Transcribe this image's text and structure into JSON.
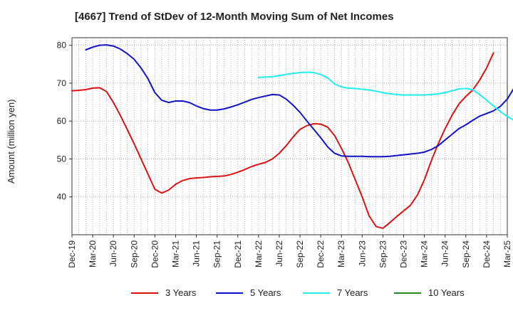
{
  "chart_data": {
    "type": "line",
    "title": "[4667]  Trend of StDev of 12-Month Moving Sum of Net Incomes",
    "xlabel": "",
    "ylabel": "Amount (million yen)",
    "ylim": [
      30,
      82
    ],
    "yticks": [
      40,
      50,
      60,
      70,
      80
    ],
    "x_tick_labels": [
      "Dec-19",
      "Mar-20",
      "Jun-20",
      "Sep-20",
      "Dec-20",
      "Mar-21",
      "Jun-21",
      "Sep-21",
      "Dec-21",
      "Mar-22",
      "Jun-22",
      "Sep-22",
      "Dec-22",
      "Mar-23",
      "Jun-23",
      "Sep-23",
      "Dec-23",
      "Mar-24",
      "Jun-24",
      "Sep-24",
      "Dec-24",
      "Mar-25"
    ],
    "grid": true,
    "legend_position": "bottom",
    "series": [
      {
        "name": "3 Years",
        "color": "#dd1111",
        "start_month": 0,
        "values": [
          68.0,
          68.1,
          68.3,
          68.7,
          68.8,
          67.8,
          64.9,
          61.5,
          57.8,
          54.0,
          50.0,
          46.0,
          42.0,
          41.0,
          41.8,
          43.3,
          44.3,
          44.8,
          45.0,
          45.1,
          45.3,
          45.4,
          45.5,
          45.9,
          46.5,
          47.2,
          48.0,
          48.6,
          49.1,
          50.0,
          51.5,
          53.5,
          55.8,
          57.8,
          58.8,
          59.3,
          59.2,
          58.4,
          56.2,
          52.8,
          49.0,
          44.5,
          40.0,
          35.0,
          32.2,
          31.7,
          33.2,
          34.8,
          36.3,
          37.8,
          40.5,
          44.5,
          49.5,
          54.0,
          58.0,
          61.5,
          64.5,
          66.5,
          68.2,
          70.8,
          74.0,
          78.0
        ]
      },
      {
        "name": "5 Years",
        "color": "#1111cc",
        "start_month": 2,
        "values": [
          78.8,
          79.5,
          80.0,
          80.1,
          79.8,
          79.0,
          77.8,
          76.3,
          74.0,
          71.2,
          67.5,
          65.5,
          64.9,
          65.3,
          65.3,
          64.9,
          64.0,
          63.3,
          62.9,
          62.9,
          63.2,
          63.7,
          64.3,
          65.0,
          65.7,
          66.2,
          66.6,
          67.0,
          66.9,
          65.8,
          64.2,
          62.3,
          60.0,
          57.8,
          55.6,
          53.2,
          51.5,
          50.8,
          50.7,
          50.7,
          50.7,
          50.6,
          50.6,
          50.6,
          50.7,
          50.9,
          51.1,
          51.3,
          51.5,
          51.8,
          52.5,
          53.5,
          55.0,
          56.5,
          58.0,
          59.0,
          60.2,
          61.3,
          62.0,
          62.7,
          63.9,
          65.8,
          68.8
        ]
      },
      {
        "name": "7 Years",
        "color": "#22eeee",
        "start_month": 27,
        "values": [
          71.5,
          71.6,
          71.7,
          72.0,
          72.3,
          72.6,
          72.8,
          72.9,
          72.8,
          72.3,
          71.4,
          69.8,
          69.0,
          68.7,
          68.6,
          68.4,
          68.2,
          67.9,
          67.5,
          67.2,
          67.0,
          66.9,
          66.9,
          66.9,
          66.9,
          67.0,
          67.2,
          67.5,
          68.0,
          68.5,
          68.6,
          68.3,
          67.0,
          65.5,
          64.0,
          62.5,
          61.2,
          60.2,
          60.1,
          61.0
        ]
      },
      {
        "name": "10 Years",
        "color": "#228822",
        "start_month": 0,
        "values": []
      }
    ]
  }
}
